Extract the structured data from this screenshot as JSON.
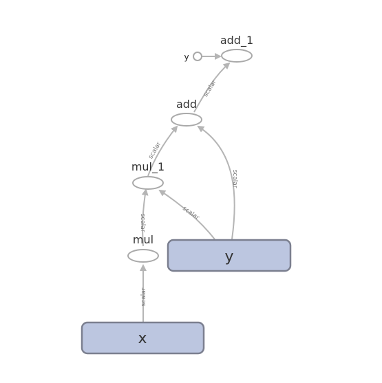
{
  "graph": {
    "nodes": {
      "add_1": "add_1",
      "add": "add",
      "mul_1": "mul_1",
      "mul": "mul",
      "x": "x",
      "y": "y",
      "y_input": "y"
    },
    "edge_label": "scalar"
  },
  "colors": {
    "rect_fill": "#bcc6e0",
    "rect_stroke": "#7b7f8f",
    "edge": "#b5b5b5",
    "ellipse_stroke": "#a9a9a9"
  }
}
